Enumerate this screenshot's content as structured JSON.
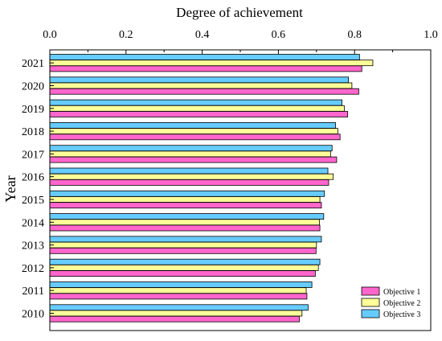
{
  "chart_data": {
    "type": "bar",
    "orientation": "horizontal",
    "xlabel": "Degree of achievement",
    "ylabel": "Year",
    "xlim": [
      0.0,
      1.0
    ],
    "xticks": [
      "0.0",
      "0.2",
      "0.4",
      "0.6",
      "0.8",
      "1.0"
    ],
    "xtick_values": [
      0.0,
      0.2,
      0.4,
      0.6,
      0.8,
      1.0
    ],
    "x_axis_position": "top",
    "grid": false,
    "legend_position": "bottom-right",
    "categories": [
      "2010",
      "2011",
      "2012",
      "2013",
      "2014",
      "2015",
      "2016",
      "2017",
      "2018",
      "2019",
      "2020",
      "2021"
    ],
    "series": [
      {
        "name": "Objective 1",
        "color": "#ff66cc",
        "values": [
          0.655,
          0.675,
          0.697,
          0.699,
          0.709,
          0.713,
          0.732,
          0.753,
          0.762,
          0.782,
          0.811,
          0.819
        ]
      },
      {
        "name": "Objective 2",
        "color": "#ffff99",
        "values": [
          0.662,
          0.673,
          0.705,
          0.7,
          0.708,
          0.709,
          0.744,
          0.737,
          0.756,
          0.773,
          0.793,
          0.848
        ]
      },
      {
        "name": "Objective 3",
        "color": "#66ccff",
        "values": [
          0.678,
          0.688,
          0.709,
          0.713,
          0.719,
          0.721,
          0.73,
          0.741,
          0.75,
          0.767,
          0.784,
          0.813
        ]
      }
    ]
  }
}
